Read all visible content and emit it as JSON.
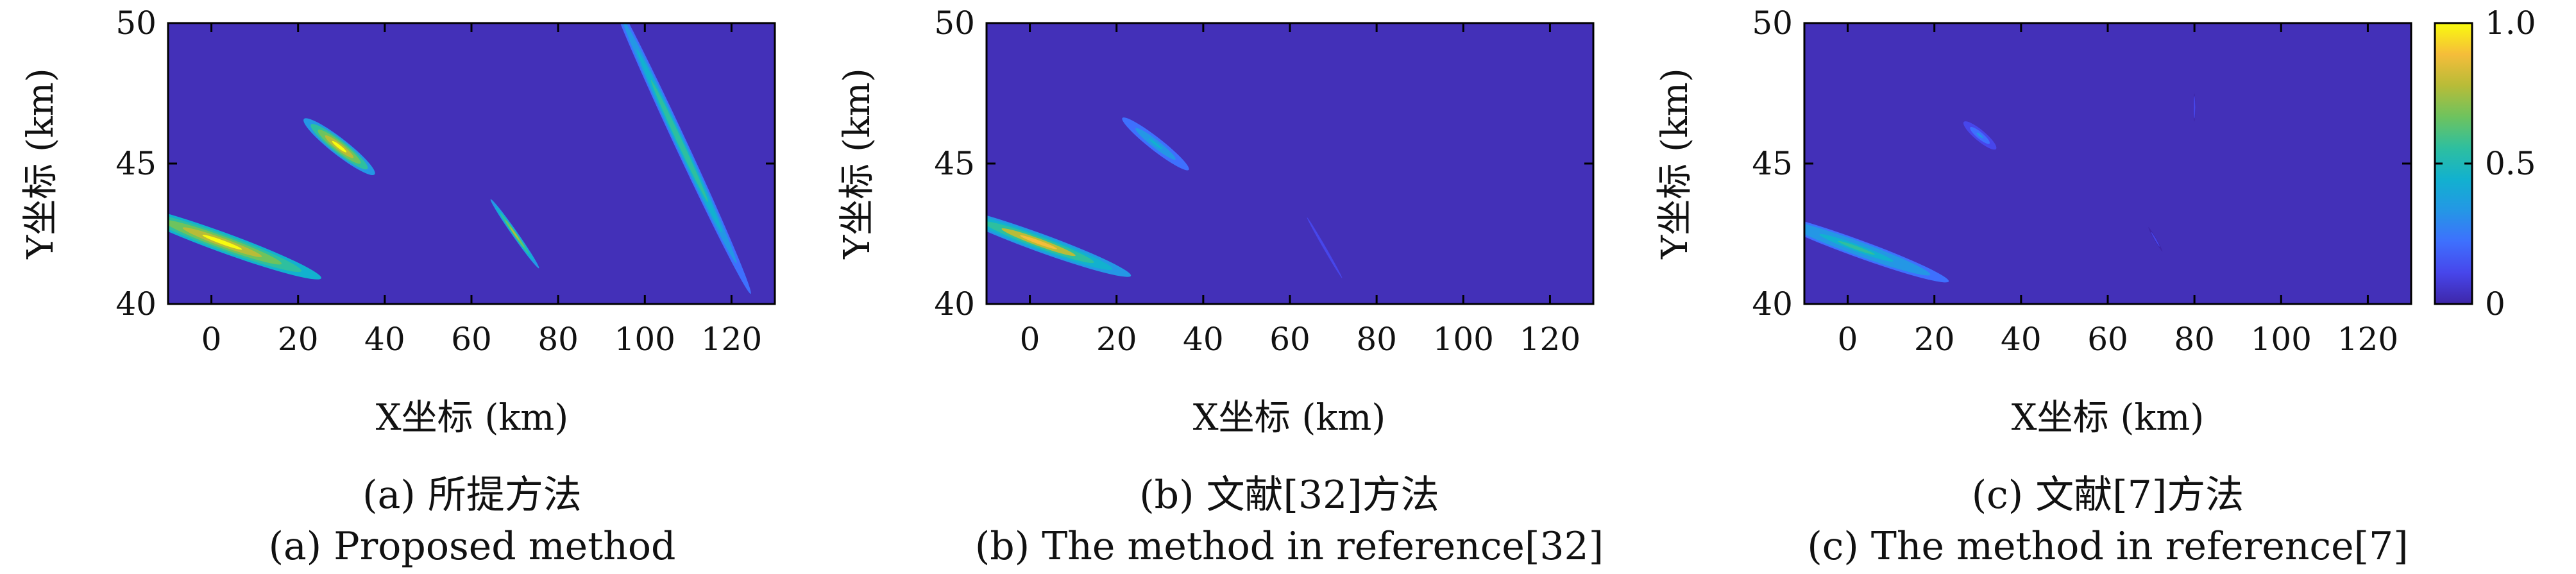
{
  "colors": {
    "background": "#4330b8",
    "axis": "#000000",
    "colormap": [
      "#3e26a8",
      "#4746eb",
      "#3e70fe",
      "#2497e5",
      "#12b1cf",
      "#2ebf9f",
      "#6ec35e",
      "#b8bc38",
      "#f5bd3a",
      "#f9fb0e"
    ]
  },
  "chart_data": [
    {
      "type": "heatmap",
      "xlabel": "X坐标 (km)",
      "ylabel": "Y坐标 (km)",
      "xlim": [
        -10,
        130
      ],
      "ylim": [
        40,
        50
      ],
      "xticks": [
        "0",
        "20",
        "40",
        "60",
        "80",
        "100",
        "120"
      ],
      "yticks": [
        "40",
        "45",
        "50"
      ],
      "caption_cn": "(a) 所提方法",
      "caption_en": "(a) Proposed method",
      "targets": [
        {
          "cx": 2.5,
          "cy": 42.2,
          "length": 4.6,
          "width": 7.5,
          "angle_deg": 70,
          "peak": 0.98
        },
        {
          "cx": 29.5,
          "cy": 45.6,
          "length": 3.8,
          "width": 3.2,
          "angle_deg": 52,
          "peak": 0.95
        },
        {
          "cx": 70.0,
          "cy": 42.5,
          "length": 1.3,
          "width": 3.0,
          "angle_deg": 35,
          "peak": 0.75
        },
        {
          "cx": 108.0,
          "cy": 45.8,
          "length": 2.9,
          "width": 12.0,
          "angle_deg": 25,
          "peak": 0.6
        }
      ]
    },
    {
      "type": "heatmap",
      "xlabel": "X坐标 (km)",
      "ylabel": "Y坐标 (km)",
      "xlim": [
        -10,
        130
      ],
      "ylim": [
        40,
        50
      ],
      "xticks": [
        "0",
        "20",
        "40",
        "60",
        "80",
        "100",
        "120"
      ],
      "yticks": [
        "40",
        "45",
        "50"
      ],
      "caption_cn": "(b) 文献[32]方法",
      "caption_en": "(b) The method in reference[32]",
      "targets": [
        {
          "cx": 2.0,
          "cy": 42.2,
          "length": 4.2,
          "width": 7.0,
          "angle_deg": 70,
          "peak": 0.85
        },
        {
          "cx": 29.0,
          "cy": 45.7,
          "length": 3.0,
          "width": 3.0,
          "angle_deg": 52,
          "peak": 0.45
        },
        {
          "cx": 68.0,
          "cy": 42.0,
          "length": 0.6,
          "width": 2.5,
          "angle_deg": 30,
          "peak": 0.15
        }
      ]
    },
    {
      "type": "heatmap",
      "xlabel": "X坐标 (km)",
      "ylabel": "Y坐标 (km)",
      "xlim": [
        -10,
        130
      ],
      "ylim": [
        40,
        50
      ],
      "xticks": [
        "0",
        "20",
        "40",
        "60",
        "80",
        "100",
        "120"
      ],
      "yticks": [
        "40",
        "45",
        "50"
      ],
      "caption_cn": "(c) 文献[7]方法",
      "caption_en": "(c) The method in reference[7]",
      "targets": [
        {
          "cx": 2.0,
          "cy": 42.0,
          "length": 4.0,
          "width": 7.0,
          "angle_deg": 70,
          "peak": 0.55
        },
        {
          "cx": 30.5,
          "cy": 46.0,
          "length": 2.5,
          "width": 1.5,
          "angle_deg": 50,
          "peak": 0.3
        },
        {
          "cx": 80.0,
          "cy": 47.0,
          "length": 0.4,
          "width": 1.0,
          "angle_deg": 0,
          "peak": 0.12
        },
        {
          "cx": 71.0,
          "cy": 42.3,
          "length": 0.5,
          "width": 1.0,
          "angle_deg": 30,
          "peak": 0.1
        }
      ]
    }
  ],
  "colorbar": {
    "range": [
      0,
      1
    ],
    "ticks": [
      "1.0",
      "0.5",
      "0"
    ]
  }
}
